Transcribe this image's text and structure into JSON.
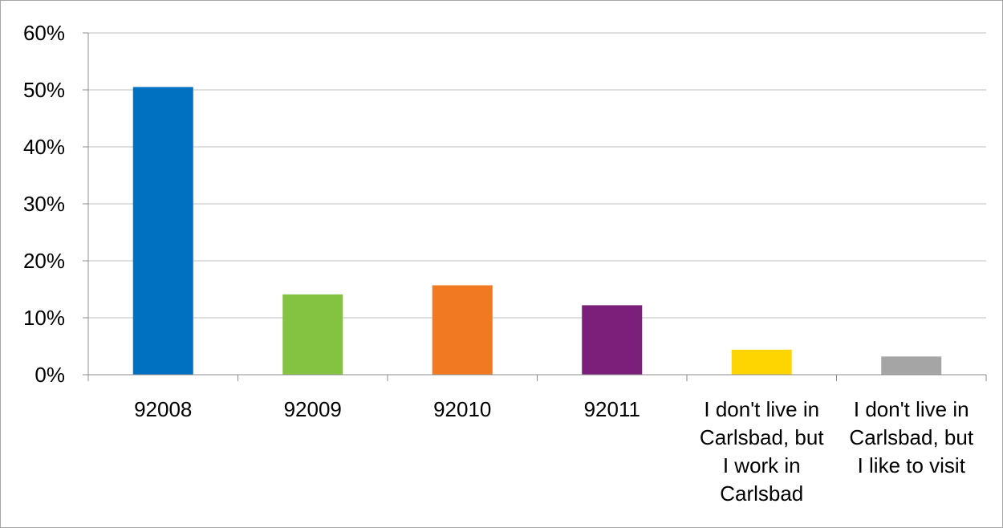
{
  "chart_data": {
    "type": "bar",
    "title": "",
    "xlabel": "",
    "ylabel": "",
    "categories": [
      [
        "92008"
      ],
      [
        "92009"
      ],
      [
        "92010"
      ],
      [
        "92011"
      ],
      [
        "I don't live in",
        "Carlsbad, but",
        "I work in",
        "Carlsbad"
      ],
      [
        "I don't live in",
        "Carlsbad, but",
        "I like to visit"
      ]
    ],
    "values": [
      0.505,
      0.141,
      0.157,
      0.122,
      0.044,
      0.032
    ],
    "colors": [
      "#0070C0",
      "#83C341",
      "#F07921",
      "#7B1F7A",
      "#FFD500",
      "#A5A5A5"
    ],
    "ylim": [
      0,
      0.6
    ],
    "yticks": [
      0,
      0.1,
      0.2,
      0.3,
      0.4,
      0.5,
      0.6
    ],
    "ytick_labels": [
      "0%",
      "10%",
      "20%",
      "30%",
      "40%",
      "50%",
      "60%"
    ],
    "grid": true,
    "legend": "none"
  }
}
